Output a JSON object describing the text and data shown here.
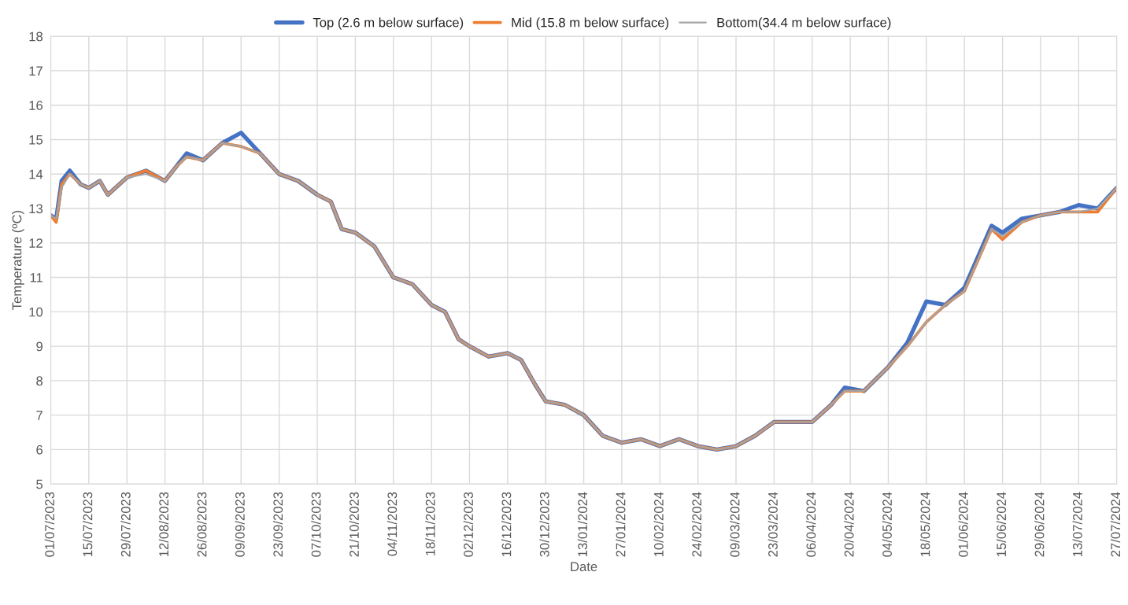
{
  "chart_data": {
    "type": "line",
    "xlabel": "Date",
    "ylabel": "Temperature (ºC)",
    "x": [
      "2023-07-01",
      "2023-07-03",
      "2023-07-05",
      "2023-07-08",
      "2023-07-12",
      "2023-07-15",
      "2023-07-19",
      "2023-07-22",
      "2023-07-29",
      "2023-08-05",
      "2023-08-12",
      "2023-08-16",
      "2023-08-20",
      "2023-08-26",
      "2023-09-02",
      "2023-09-09",
      "2023-09-16",
      "2023-09-23",
      "2023-09-30",
      "2023-10-07",
      "2023-10-12",
      "2023-10-16",
      "2023-10-21",
      "2023-10-28",
      "2023-11-04",
      "2023-11-11",
      "2023-11-18",
      "2023-11-23",
      "2023-11-28",
      "2023-12-02",
      "2023-12-09",
      "2023-12-16",
      "2023-12-21",
      "2023-12-26",
      "2023-12-30",
      "2024-01-06",
      "2024-01-13",
      "2024-01-20",
      "2024-01-27",
      "2024-02-03",
      "2024-02-10",
      "2024-02-17",
      "2024-02-24",
      "2024-03-02",
      "2024-03-09",
      "2024-03-16",
      "2024-03-23",
      "2024-03-30",
      "2024-04-06",
      "2024-04-13",
      "2024-04-18",
      "2024-04-25",
      "2024-05-04",
      "2024-05-11",
      "2024-05-18",
      "2024-05-25",
      "2024-06-01",
      "2024-06-06",
      "2024-06-11",
      "2024-06-15",
      "2024-06-22",
      "2024-06-29",
      "2024-07-06",
      "2024-07-13",
      "2024-07-20",
      "2024-07-27"
    ],
    "series": [
      {
        "name": "Top (2.6 m below surface)",
        "color": "#4472c4",
        "values": [
          12.8,
          12.7,
          13.8,
          14.1,
          13.7,
          13.6,
          13.8,
          13.4,
          13.9,
          14.1,
          13.8,
          14.2,
          14.6,
          14.4,
          14.9,
          15.2,
          14.6,
          14.0,
          13.8,
          13.4,
          13.2,
          12.4,
          12.3,
          11.9,
          11.0,
          10.8,
          10.2,
          10.0,
          9.2,
          9.0,
          8.7,
          8.8,
          8.6,
          7.9,
          7.4,
          7.3,
          7.0,
          6.4,
          6.2,
          6.3,
          6.1,
          6.3,
          6.1,
          6.0,
          6.1,
          6.4,
          6.8,
          6.8,
          6.8,
          7.3,
          7.8,
          7.7,
          8.4,
          9.1,
          10.3,
          10.2,
          10.7,
          11.6,
          12.5,
          12.3,
          12.7,
          12.8,
          12.9,
          13.1,
          13.0,
          13.6
        ]
      },
      {
        "name": "Mid (15.8 m below surface)",
        "color": "#ed7d31",
        "values": [
          12.8,
          12.6,
          13.7,
          14.0,
          13.7,
          13.6,
          13.8,
          13.4,
          13.9,
          14.1,
          13.8,
          14.2,
          14.5,
          14.4,
          14.9,
          14.8,
          14.6,
          14.0,
          13.8,
          13.4,
          13.2,
          12.4,
          12.3,
          11.9,
          11.0,
          10.8,
          10.2,
          10.0,
          9.2,
          9.0,
          8.7,
          8.8,
          8.6,
          7.9,
          7.4,
          7.3,
          7.0,
          6.4,
          6.2,
          6.3,
          6.1,
          6.3,
          6.1,
          6.0,
          6.1,
          6.4,
          6.8,
          6.8,
          6.8,
          7.3,
          7.7,
          7.7,
          8.4,
          9.0,
          9.7,
          10.2,
          10.6,
          11.5,
          12.4,
          12.1,
          12.6,
          12.8,
          12.9,
          12.9,
          12.9,
          13.6
        ]
      },
      {
        "name": "Bottom(34.4 m below surface)",
        "color": "#a5a5a5",
        "values": [
          12.8,
          12.7,
          13.6,
          14.0,
          13.7,
          13.6,
          13.8,
          13.4,
          13.9,
          14.0,
          13.8,
          14.2,
          14.5,
          14.4,
          14.9,
          14.8,
          14.6,
          14.0,
          13.8,
          13.4,
          13.2,
          12.4,
          12.3,
          11.9,
          11.0,
          10.8,
          10.2,
          10.0,
          9.2,
          9.0,
          8.7,
          8.8,
          8.6,
          7.9,
          7.4,
          7.3,
          7.0,
          6.4,
          6.2,
          6.3,
          6.1,
          6.3,
          6.1,
          6.0,
          6.1,
          6.4,
          6.8,
          6.8,
          6.8,
          7.3,
          7.7,
          7.7,
          8.4,
          9.0,
          9.7,
          10.2,
          10.6,
          11.5,
          12.4,
          12.2,
          12.6,
          12.8,
          12.9,
          12.9,
          13.0,
          13.6
        ]
      }
    ],
    "xlim": [
      "2023-07-01",
      "2024-07-27"
    ],
    "xticks": [
      {
        "value": "2023-07-01",
        "label": "01/07/2023"
      },
      {
        "value": "2023-07-15",
        "label": "15/07/2023"
      },
      {
        "value": "2023-07-29",
        "label": "29/07/2023"
      },
      {
        "value": "2023-08-12",
        "label": "12/08/2023"
      },
      {
        "value": "2023-08-26",
        "label": "26/08/2023"
      },
      {
        "value": "2023-09-09",
        "label": "09/09/2023"
      },
      {
        "value": "2023-09-23",
        "label": "23/09/2023"
      },
      {
        "value": "2023-10-07",
        "label": "07/10/2023"
      },
      {
        "value": "2023-10-21",
        "label": "21/10/2023"
      },
      {
        "value": "2023-11-04",
        "label": "04/11/2023"
      },
      {
        "value": "2023-11-18",
        "label": "18/11/2023"
      },
      {
        "value": "2023-12-02",
        "label": "02/12/2023"
      },
      {
        "value": "2023-12-16",
        "label": "16/12/2023"
      },
      {
        "value": "2023-12-30",
        "label": "30/12/2023"
      },
      {
        "value": "2024-01-13",
        "label": "13/01/2024"
      },
      {
        "value": "2024-01-27",
        "label": "27/01/2024"
      },
      {
        "value": "2024-02-10",
        "label": "10/02/2024"
      },
      {
        "value": "2024-02-24",
        "label": "24/02/2024"
      },
      {
        "value": "2024-03-09",
        "label": "09/03/2024"
      },
      {
        "value": "2024-03-23",
        "label": "23/03/2024"
      },
      {
        "value": "2024-04-06",
        "label": "06/04/2024"
      },
      {
        "value": "2024-04-20",
        "label": "20/04/2024"
      },
      {
        "value": "2024-05-04",
        "label": "04/05/2024"
      },
      {
        "value": "2024-05-18",
        "label": "18/05/2024"
      },
      {
        "value": "2024-06-01",
        "label": "01/06/2024"
      },
      {
        "value": "2024-06-15",
        "label": "15/06/2024"
      },
      {
        "value": "2024-06-29",
        "label": "29/06/2024"
      },
      {
        "value": "2024-07-13",
        "label": "13/07/2024"
      },
      {
        "value": "2024-07-27",
        "label": "27/07/2024"
      }
    ],
    "ylim": [
      5,
      18
    ],
    "yticks": [
      5,
      6,
      7,
      8,
      9,
      10,
      11,
      12,
      13,
      14,
      15,
      16,
      17,
      18
    ],
    "grid": true,
    "legend": "top"
  }
}
